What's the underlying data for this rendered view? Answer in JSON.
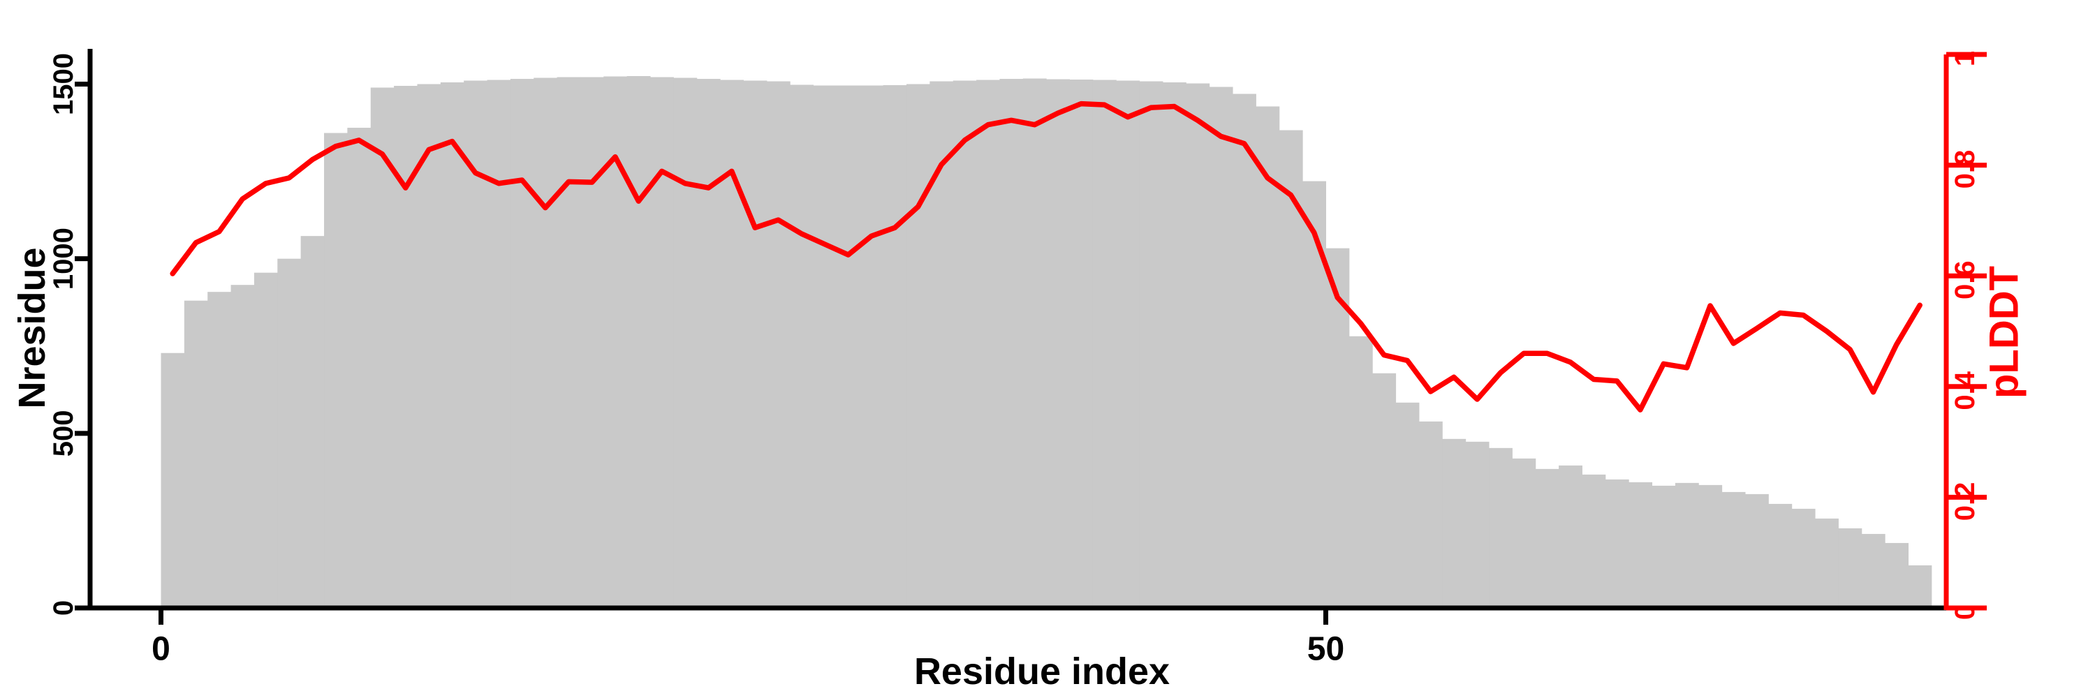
{
  "figure": {
    "background_color": "#ffffff",
    "left_axis": {
      "title": "Nresidue",
      "color": "#000000",
      "tick_labels": [
        "0",
        "500",
        "1000",
        "1500"
      ],
      "tick_values": [
        0,
        500,
        1000,
        1500
      ],
      "range": [
        0,
        1500
      ]
    },
    "bottom_axis": {
      "title": "Residue index",
      "color": "#000000",
      "tick_labels": [
        "0",
        "50"
      ],
      "tick_values": [
        0,
        50
      ]
    },
    "right_axis": {
      "title": "pLDDT",
      "color": "#fe0000",
      "tick_labels": [
        "0",
        "0.2",
        "0.4",
        "0.6",
        "0.8",
        "1"
      ],
      "tick_values": [
        0,
        0.2,
        0.4,
        0.6,
        0.8,
        1
      ],
      "range": [
        0,
        1
      ]
    }
  },
  "chart_data": {
    "type": "bar",
    "title": "",
    "xlabel": "Residue index",
    "x_bin_start": 0,
    "x_bin_width": 1,
    "n_bins": 76,
    "x_ticks": [
      0,
      50
    ],
    "grid": false,
    "legend": "none",
    "series": [
      {
        "name": "Nresidue",
        "type": "bar",
        "y_axis": "left",
        "color": "#c9c9c9",
        "ylim": [
          0,
          1500
        ],
        "values": [
          730,
          880,
          905,
          925,
          960,
          1000,
          1065,
          1360,
          1375,
          1490,
          1495,
          1500,
          1505,
          1510,
          1512,
          1515,
          1518,
          1520,
          1520,
          1522,
          1523,
          1520,
          1518,
          1515,
          1512,
          1510,
          1508,
          1498,
          1496,
          1496,
          1496,
          1497,
          1500,
          1508,
          1510,
          1512,
          1515,
          1516,
          1514,
          1513,
          1512,
          1510,
          1508,
          1505,
          1502,
          1492,
          1472,
          1436,
          1368,
          1222,
          1030,
          778,
          672,
          588,
          534,
          484,
          476,
          458,
          428,
          398,
          408,
          382,
          368,
          360,
          350,
          358,
          352,
          332,
          326,
          298,
          284,
          256,
          228,
          212,
          186,
          122
        ]
      },
      {
        "name": "pLDDT",
        "type": "line",
        "y_axis": "right",
        "color": "#fe0000",
        "ylim": [
          0,
          1
        ],
        "values": [
          0.604,
          0.66,
          0.68,
          0.739,
          0.767,
          0.777,
          0.81,
          0.834,
          0.845,
          0.82,
          0.759,
          0.828,
          0.843,
          0.786,
          0.767,
          0.773,
          0.723,
          0.77,
          0.769,
          0.815,
          0.735,
          0.789,
          0.767,
          0.759,
          0.789,
          0.687,
          0.701,
          0.676,
          0.657,
          0.638,
          0.672,
          0.687,
          0.725,
          0.801,
          0.845,
          0.873,
          0.881,
          0.873,
          0.894,
          0.911,
          0.909,
          0.887,
          0.904,
          0.906,
          0.881,
          0.852,
          0.839,
          0.777,
          0.746,
          0.678,
          0.561,
          0.514,
          0.457,
          0.447,
          0.391,
          0.417,
          0.377,
          0.425,
          0.46,
          0.46,
          0.444,
          0.413,
          0.41,
          0.358,
          0.441,
          0.434,
          0.546,
          0.478,
          0.505,
          0.533,
          0.529,
          0.5,
          0.467,
          0.39,
          0.476,
          0.547
        ]
      }
    ]
  }
}
